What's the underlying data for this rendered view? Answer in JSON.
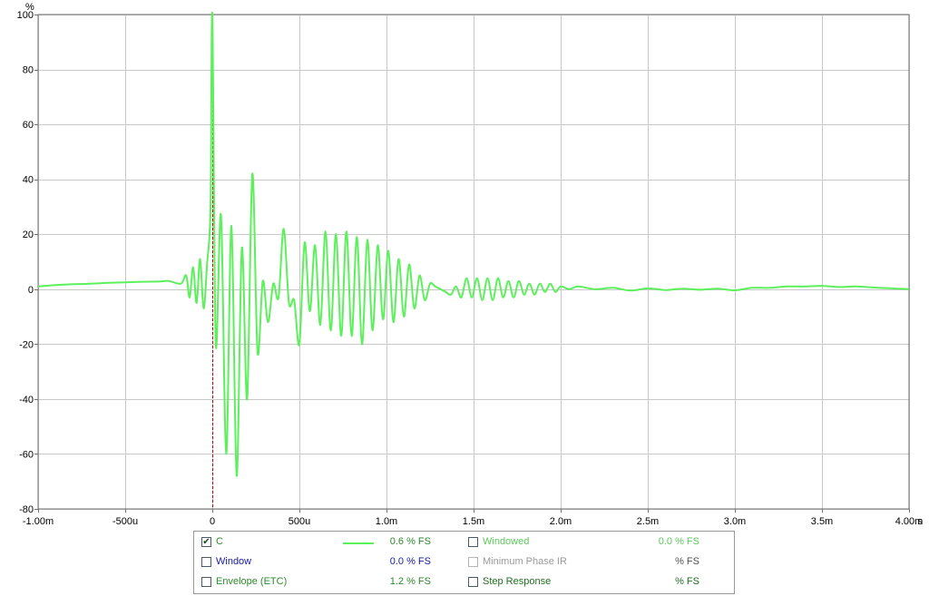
{
  "chart_data": {
    "type": "line",
    "ylabel": "%",
    "xunit": "s",
    "xlim": [
      -0.001,
      0.004
    ],
    "ylim": [
      -80,
      100
    ],
    "grid": true,
    "grid_color": "#c8c8c8",
    "marker_x": 0,
    "marker_color": "#cc0000",
    "x_ticks": [
      {
        "value": -0.001,
        "label": "-1.00m"
      },
      {
        "value": -0.0005,
        "label": "-500u"
      },
      {
        "value": 0,
        "label": "0"
      },
      {
        "value": 0.0005,
        "label": "500u"
      },
      {
        "value": 0.001,
        "label": "1.0m"
      },
      {
        "value": 0.0015,
        "label": "1.5m"
      },
      {
        "value": 0.002,
        "label": "2.0m"
      },
      {
        "value": 0.0025,
        "label": "2.5m"
      },
      {
        "value": 0.003,
        "label": "3.0m"
      },
      {
        "value": 0.0035,
        "label": "3.5m"
      },
      {
        "value": 0.004,
        "label": "4.00m"
      }
    ],
    "y_ticks": [
      {
        "value": 100,
        "label": "100"
      },
      {
        "value": 80,
        "label": "80"
      },
      {
        "value": 60,
        "label": "60"
      },
      {
        "value": 40,
        "label": "40"
      },
      {
        "value": 20,
        "label": "20"
      },
      {
        "value": 0,
        "label": "0"
      },
      {
        "value": -20,
        "label": "-20"
      },
      {
        "value": -40,
        "label": "-40"
      },
      {
        "value": -60,
        "label": "-60"
      },
      {
        "value": -80,
        "label": "-80"
      }
    ],
    "series": [
      {
        "name": "C",
        "color": "#5cf05c",
        "x": [
          -0.001,
          -0.0009,
          -0.0008,
          -0.0007,
          -0.0006,
          -0.0005,
          -0.0004,
          -0.0003,
          -0.00025,
          -0.00018,
          -0.00015,
          -0.00013,
          -0.00011,
          -9e-05,
          -7e-05,
          -5e-05,
          -3e-05,
          -1e-05,
          0,
          2e-05,
          5e-05,
          8e-05,
          0.00011,
          0.00014,
          0.00017,
          0.0002,
          0.00023,
          0.00026,
          0.00029,
          0.00032,
          0.00035,
          0.00038,
          0.00041,
          0.00044,
          0.00047,
          0.0005,
          0.00053,
          0.00056,
          0.00059,
          0.00062,
          0.00065,
          0.00068,
          0.00071,
          0.00074,
          0.00077,
          0.0008,
          0.00083,
          0.00086,
          0.00089,
          0.00092,
          0.00095,
          0.00098,
          0.00101,
          0.00104,
          0.00107,
          0.0011,
          0.00113,
          0.00116,
          0.00119,
          0.00122,
          0.00125,
          0.00128,
          0.00131,
          0.00134,
          0.00137,
          0.0014,
          0.00143,
          0.00146,
          0.00149,
          0.00152,
          0.00155,
          0.00158,
          0.00161,
          0.00164,
          0.00167,
          0.0017,
          0.00173,
          0.00176,
          0.00179,
          0.00182,
          0.00185,
          0.00188,
          0.00191,
          0.00194,
          0.00197,
          0.002,
          0.00205,
          0.0021,
          0.0022,
          0.0023,
          0.0024,
          0.0025,
          0.0026,
          0.0027,
          0.0028,
          0.0029,
          0.003,
          0.0031,
          0.0032,
          0.0033,
          0.0034,
          0.0035,
          0.0036,
          0.0037,
          0.0038,
          0.0039,
          0.004
        ],
        "y": [
          1,
          1.5,
          1.8,
          2,
          2.3,
          2.5,
          2.7,
          2.8,
          3,
          2,
          5,
          -3,
          8,
          -5,
          11,
          -7,
          9,
          30,
          100,
          -20,
          27,
          -60,
          23,
          -68,
          15,
          -40,
          42,
          -23,
          3,
          -12,
          2,
          -3,
          22,
          -5,
          -4,
          -20,
          17,
          -8,
          16,
          -13,
          21,
          -15,
          20,
          -17,
          21,
          -17,
          19,
          -20,
          18,
          -15,
          16,
          -11,
          14,
          -12,
          11,
          -10,
          9,
          -7,
          5,
          -4,
          2,
          1,
          0,
          -1,
          -2,
          1,
          -3,
          4,
          -3,
          4,
          -4,
          4,
          -4,
          4,
          -3,
          3,
          -3,
          3,
          -2,
          2,
          -2,
          2,
          -1,
          2,
          -1,
          1,
          0,
          1,
          0,
          0.5,
          -0.5,
          0.3,
          -0.3,
          0.2,
          -0.2,
          0.2,
          -0.4,
          0.5,
          0.5,
          1,
          1,
          1.2,
          0.8,
          1,
          0.6,
          0.3,
          0
        ]
      }
    ]
  },
  "legend": {
    "rows": [
      {
        "left": {
          "label": "C",
          "value": "0.6 % FS",
          "checked": true,
          "checkmark": "✔",
          "label_color": "#2d8a2d",
          "value_color": "#2d8a2d",
          "has_swatch": true
        },
        "right": {
          "label": "Windowed",
          "value": "0.0 % FS",
          "checked": false,
          "label_color": "#5cc85c",
          "value_color": "#5cc85c",
          "disabled": false
        }
      },
      {
        "left": {
          "label": "Window",
          "value": "0.0 % FS",
          "checked": false,
          "label_color": "#1a1aa0",
          "value_color": "#1a1aa0",
          "has_swatch": false
        },
        "right": {
          "label": "Minimum Phase IR",
          "value": "% FS",
          "checked": false,
          "label_color": "#9a9a9a",
          "value_color": "#505050",
          "disabled": true
        }
      },
      {
        "left": {
          "label": "Envelope (ETC)",
          "value": "1.2 % FS",
          "checked": false,
          "label_color": "#2d8a2d",
          "value_color": "#2d8a2d",
          "has_swatch": false
        },
        "right": {
          "label": "Step Response",
          "value": "% FS",
          "checked": false,
          "label_color": "#207020",
          "value_color": "#207020",
          "disabled": false
        }
      }
    ]
  }
}
